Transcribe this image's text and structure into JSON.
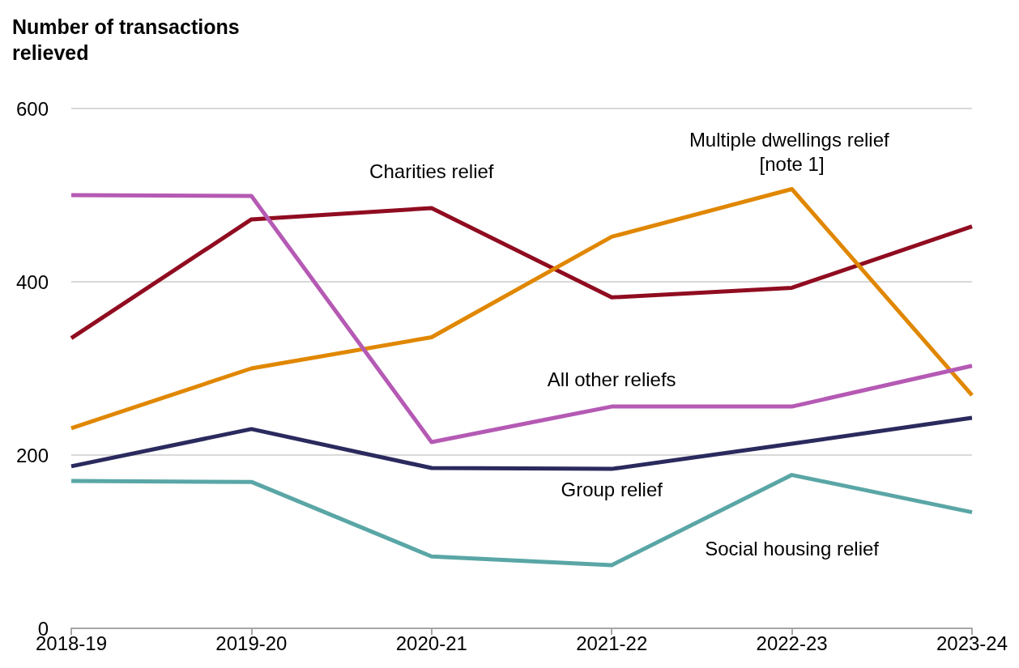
{
  "chart_data": {
    "type": "line",
    "title": "Number of transactions relieved",
    "categories": [
      "2018-19",
      "2019-20",
      "2020-21",
      "2021-22",
      "2022-23",
      "2023-24"
    ],
    "series": [
      {
        "name": "Charities relief",
        "color": "#900c20",
        "values": [
          335,
          472,
          485,
          382,
          393,
          464
        ]
      },
      {
        "name": "Multiple dwellings relief [note 1]",
        "color": "#e08700",
        "values": [
          231,
          300,
          336,
          452,
          507,
          269
        ]
      },
      {
        "name": "All other reliefs",
        "color": "#b55ab4",
        "values": [
          500,
          499,
          215,
          256,
          256,
          303
        ]
      },
      {
        "name": "Group relief",
        "color": "#2a2a5e",
        "values": [
          187,
          230,
          185,
          184,
          213,
          243
        ]
      },
      {
        "name": "Social housing relief",
        "color": "#5aa6a6",
        "values": [
          170,
          169,
          83,
          73,
          177,
          134
        ]
      }
    ],
    "ylim": [
      0,
      600
    ],
    "yticks": [
      0,
      200,
      400,
      600
    ],
    "grid": "y",
    "legend": false,
    "marker": "none",
    "line_style": "solid"
  }
}
